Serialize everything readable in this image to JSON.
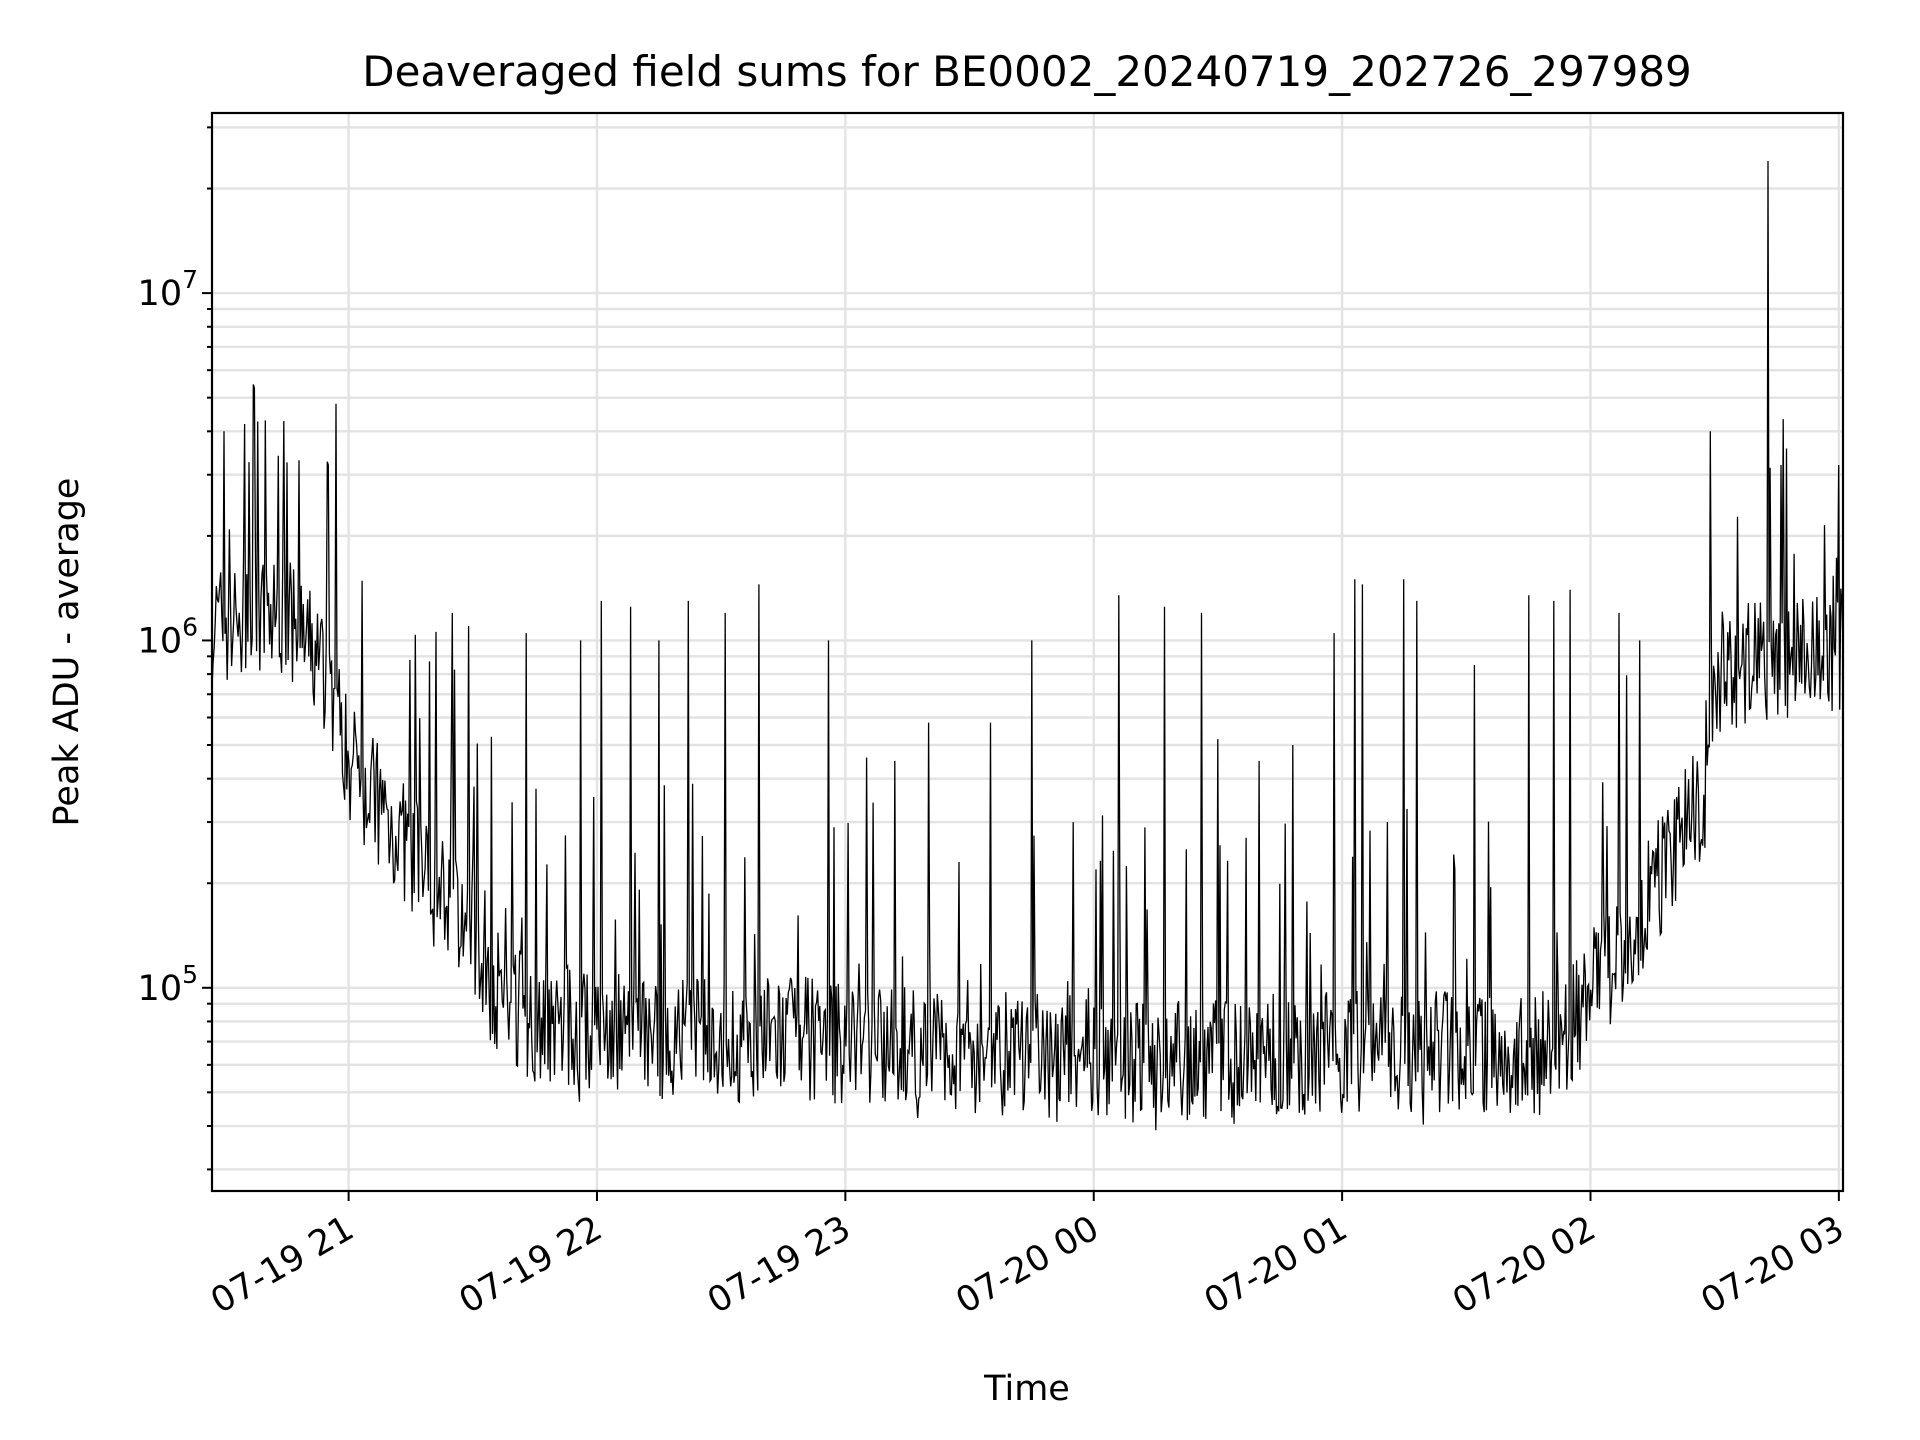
{
  "chart_data": {
    "type": "line",
    "title": "Deaveraged field sums for BE0002_20240719_202726_297989",
    "xlabel": "Time",
    "ylabel": "Peak ADU - average",
    "yscale": "log",
    "xlim": [
      "2024-07-19 20:27",
      "2024-07-20 03:01"
    ],
    "ylim": [
      26000,
      33000000
    ],
    "grid": true,
    "x_ticks": [
      {
        "value": "2024-07-19 21:00",
        "label": "07-19 21"
      },
      {
        "value": "2024-07-19 22:00",
        "label": "07-19 22"
      },
      {
        "value": "2024-07-19 23:00",
        "label": "07-19 23"
      },
      {
        "value": "2024-07-20 00:00",
        "label": "07-20 00"
      },
      {
        "value": "2024-07-20 01:00",
        "label": "07-20 01"
      },
      {
        "value": "2024-07-20 02:00",
        "label": "07-20 02"
      },
      {
        "value": "2024-07-20 03:00",
        "label": "07-20 03"
      }
    ],
    "y_ticks": [
      {
        "value": 100000,
        "base": "10",
        "exp": "5"
      },
      {
        "value": 1000000,
        "base": "10",
        "exp": "6"
      },
      {
        "value": 10000000,
        "base": "10",
        "exp": "7"
      }
    ],
    "series": [
      {
        "color": "#000000",
        "baseline": {
          "x": [
            "2024-07-19 20:27",
            "2024-07-19 20:45",
            "2024-07-19 20:55",
            "2024-07-19 21:00",
            "2024-07-19 21:10",
            "2024-07-19 21:20",
            "2024-07-19 21:30",
            "2024-07-19 21:35",
            "2024-07-19 21:45",
            "2024-07-19 22:00",
            "2024-07-19 22:30",
            "2024-07-19 22:45",
            "2024-07-19 23:00",
            "2024-07-19 23:30",
            "2024-07-20 00:00",
            "2024-07-20 00:30",
            "2024-07-20 01:00",
            "2024-07-20 01:30",
            "2024-07-20 01:50",
            "2024-07-20 02:00",
            "2024-07-20 02:10",
            "2024-07-20 02:20",
            "2024-07-20 02:27",
            "2024-07-20 02:30",
            "2024-07-20 02:40",
            "2024-07-20 03:01"
          ],
          "y": [
            1100000,
            1150000,
            800000,
            450000,
            300000,
            200000,
            150000,
            100000,
            80000,
            75000,
            70000,
            72000,
            70000,
            65000,
            63000,
            62000,
            66000,
            65000,
            65000,
            95000,
            150000,
            250000,
            350000,
            800000,
            850000,
            950000
          ]
        },
        "spikes": [
          {
            "x": "2024-07-19 20:30",
            "y": 4000000
          },
          {
            "x": "2024-07-19 20:35",
            "y": 4200000
          },
          {
            "x": "2024-07-19 20:40",
            "y": 4300000
          },
          {
            "x": "2024-07-19 20:43",
            "y": 3400000
          },
          {
            "x": "2024-07-19 20:48",
            "y": 3300000
          },
          {
            "x": "2024-07-19 20:55",
            "y": 3200000
          },
          {
            "x": "2024-07-19 20:57",
            "y": 4800000
          },
          {
            "x": "2024-07-19 21:25",
            "y": 1200000
          },
          {
            "x": "2024-07-19 21:29",
            "y": 1100000
          },
          {
            "x": "2024-07-19 21:43",
            "y": 1050000
          },
          {
            "x": "2024-07-19 21:56",
            "y": 1000000
          },
          {
            "x": "2024-07-19 22:01",
            "y": 1300000
          },
          {
            "x": "2024-07-19 22:08",
            "y": 1250000
          },
          {
            "x": "2024-07-19 22:15",
            "y": 1000000
          },
          {
            "x": "2024-07-19 22:22",
            "y": 1300000
          },
          {
            "x": "2024-07-19 22:31",
            "y": 1200000
          },
          {
            "x": "2024-07-19 22:39",
            "y": 1450000
          },
          {
            "x": "2024-07-19 22:56",
            "y": 1000000
          },
          {
            "x": "2024-07-19 23:05",
            "y": 460000
          },
          {
            "x": "2024-07-19 23:12",
            "y": 450000
          },
          {
            "x": "2024-07-19 23:20",
            "y": 580000
          },
          {
            "x": "2024-07-19 23:35",
            "y": 580000
          },
          {
            "x": "2024-07-19 23:45",
            "y": 1000000
          },
          {
            "x": "2024-07-20 00:06",
            "y": 1350000
          },
          {
            "x": "2024-07-20 00:17",
            "y": 1250000
          },
          {
            "x": "2024-07-20 00:26",
            "y": 1200000
          },
          {
            "x": "2024-07-20 00:30",
            "y": 520000
          },
          {
            "x": "2024-07-20 00:40",
            "y": 450000
          },
          {
            "x": "2024-07-20 00:48",
            "y": 500000
          },
          {
            "x": "2024-07-20 00:58",
            "y": 1050000
          },
          {
            "x": "2024-07-20 01:03",
            "y": 1500000
          },
          {
            "x": "2024-07-20 01:05",
            "y": 1450000
          },
          {
            "x": "2024-07-20 01:15",
            "y": 1500000
          },
          {
            "x": "2024-07-20 01:18",
            "y": 1300000
          },
          {
            "x": "2024-07-20 01:32",
            "y": 850000
          },
          {
            "x": "2024-07-20 01:45",
            "y": 1350000
          },
          {
            "x": "2024-07-20 01:51",
            "y": 1300000
          },
          {
            "x": "2024-07-20 01:55",
            "y": 1400000
          },
          {
            "x": "2024-07-20 02:07",
            "y": 1200000
          },
          {
            "x": "2024-07-20 02:12",
            "y": 1000000
          },
          {
            "x": "2024-07-20 02:29",
            "y": 4000000
          },
          {
            "x": "2024-07-20 02:43",
            "y": 24000000
          },
          {
            "x": "2024-07-20 02:46",
            "y": 3200000
          },
          {
            "x": "2024-07-20 03:00",
            "y": 3200000
          }
        ]
      }
    ]
  }
}
